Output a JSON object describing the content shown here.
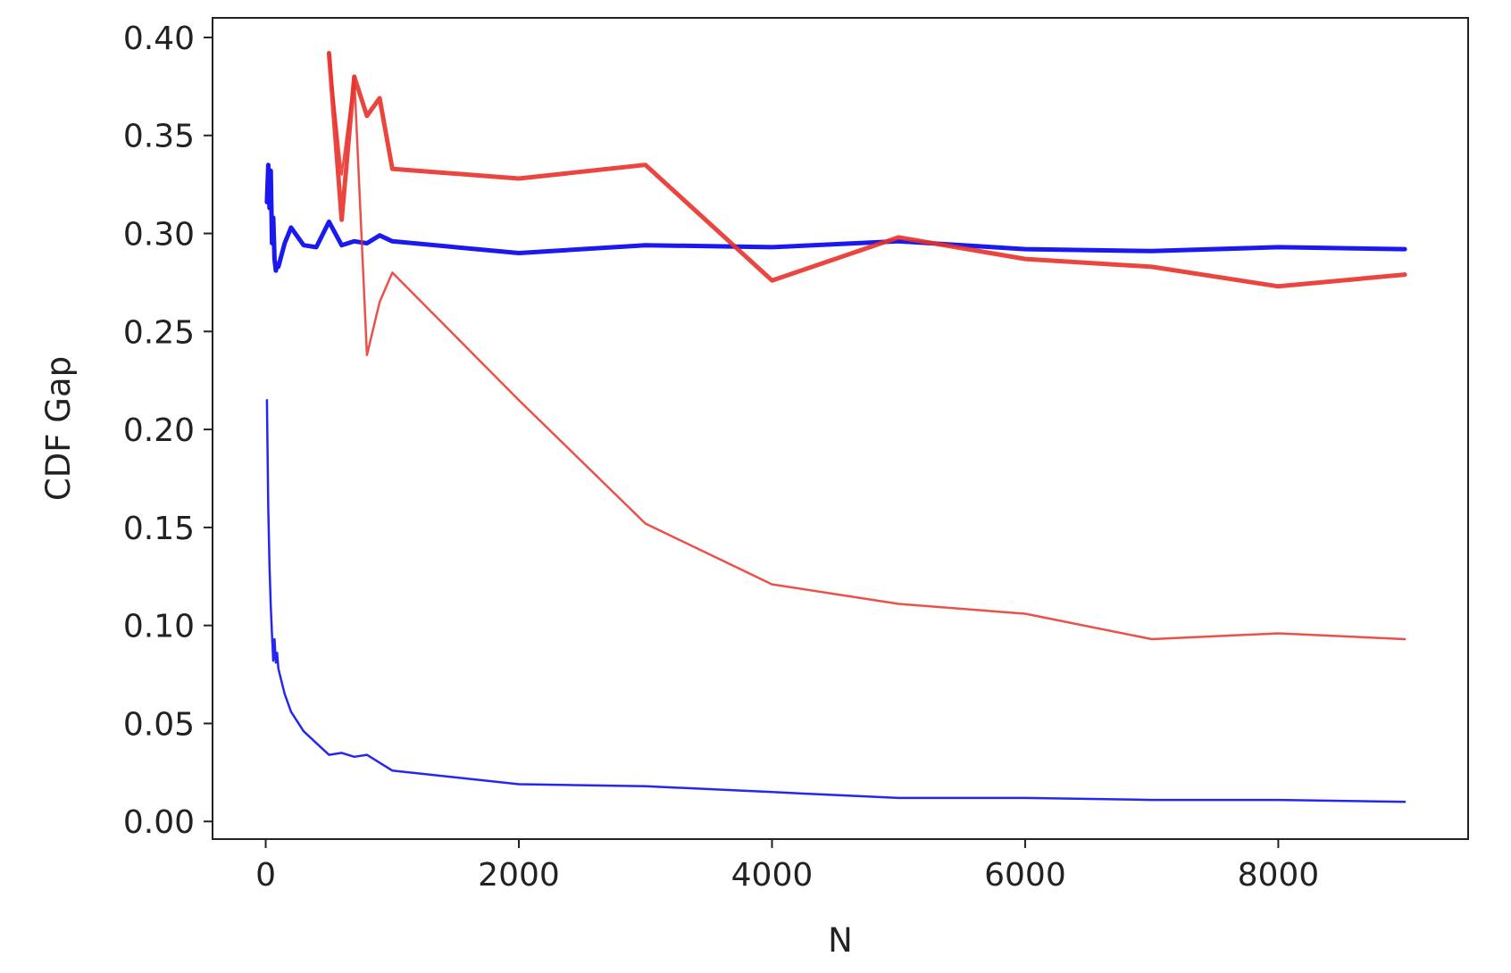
{
  "chart_data": {
    "type": "line",
    "title": "",
    "xlabel": "N",
    "ylabel": "CDF Gap",
    "xlim": [
      -420,
      9500
    ],
    "ylim": [
      -0.009,
      0.41
    ],
    "x_ticks": [
      0,
      2000,
      4000,
      6000,
      8000
    ],
    "x_tick_labels": [
      "0",
      "2000",
      "4000",
      "6000",
      "8000"
    ],
    "y_ticks": [
      0.0,
      0.05,
      0.1,
      0.15,
      0.2,
      0.25,
      0.3,
      0.35,
      0.4
    ],
    "y_tick_labels": [
      "0.00",
      "0.05",
      "0.10",
      "0.15",
      "0.20",
      "0.25",
      "0.30",
      "0.35",
      "0.40"
    ],
    "grid": false,
    "legend": "none",
    "series": [
      {
        "color": "#0000ee",
        "width": "thick",
        "points": [
          [
            10,
            0.316
          ],
          [
            20,
            0.335
          ],
          [
            30,
            0.313
          ],
          [
            40,
            0.332
          ],
          [
            50,
            0.295
          ],
          [
            60,
            0.308
          ],
          [
            70,
            0.287
          ],
          [
            80,
            0.281
          ],
          [
            90,
            0.284
          ],
          [
            100,
            0.283
          ],
          [
            150,
            0.295
          ],
          [
            200,
            0.303
          ],
          [
            300,
            0.294
          ],
          [
            400,
            0.293
          ],
          [
            500,
            0.306
          ],
          [
            600,
            0.294
          ],
          [
            700,
            0.296
          ],
          [
            800,
            0.295
          ],
          [
            900,
            0.299
          ],
          [
            1000,
            0.296
          ],
          [
            2000,
            0.29
          ],
          [
            3000,
            0.294
          ],
          [
            4000,
            0.293
          ],
          [
            5000,
            0.296
          ],
          [
            6000,
            0.292
          ],
          [
            7000,
            0.291
          ],
          [
            8000,
            0.293
          ],
          [
            9000,
            0.292
          ]
        ]
      },
      {
        "color": "#0000ee",
        "width": "thin",
        "points": [
          [
            10,
            0.215
          ],
          [
            20,
            0.16
          ],
          [
            30,
            0.13
          ],
          [
            40,
            0.11
          ],
          [
            50,
            0.095
          ],
          [
            60,
            0.082
          ],
          [
            70,
            0.093
          ],
          [
            80,
            0.081
          ],
          [
            90,
            0.086
          ],
          [
            100,
            0.078
          ],
          [
            150,
            0.065
          ],
          [
            200,
            0.056
          ],
          [
            300,
            0.046
          ],
          [
            400,
            0.04
          ],
          [
            500,
            0.034
          ],
          [
            600,
            0.035
          ],
          [
            700,
            0.033
          ],
          [
            800,
            0.034
          ],
          [
            900,
            0.03
          ],
          [
            1000,
            0.026
          ],
          [
            2000,
            0.019
          ],
          [
            3000,
            0.018
          ],
          [
            4000,
            0.015
          ],
          [
            5000,
            0.012
          ],
          [
            6000,
            0.012
          ],
          [
            7000,
            0.011
          ],
          [
            8000,
            0.011
          ],
          [
            9000,
            0.01
          ]
        ]
      },
      {
        "color": "#e8312a",
        "width": "thick",
        "points": [
          [
            500,
            0.392
          ],
          [
            600,
            0.307
          ],
          [
            700,
            0.38
          ],
          [
            800,
            0.36
          ],
          [
            900,
            0.369
          ],
          [
            1000,
            0.333
          ],
          [
            2000,
            0.328
          ],
          [
            3000,
            0.335
          ],
          [
            4000,
            0.276
          ],
          [
            5000,
            0.298
          ],
          [
            6000,
            0.287
          ],
          [
            7000,
            0.283
          ],
          [
            8000,
            0.273
          ],
          [
            9000,
            0.279
          ]
        ]
      },
      {
        "color": "#e8312a",
        "width": "thin",
        "points": [
          [
            500,
            0.392
          ],
          [
            600,
            0.33
          ],
          [
            700,
            0.38
          ],
          [
            800,
            0.238
          ],
          [
            900,
            0.265
          ],
          [
            1000,
            0.28
          ],
          [
            2000,
            0.215
          ],
          [
            3000,
            0.152
          ],
          [
            4000,
            0.121
          ],
          [
            5000,
            0.111
          ],
          [
            6000,
            0.106
          ],
          [
            7000,
            0.093
          ],
          [
            8000,
            0.096
          ],
          [
            9000,
            0.093
          ]
        ]
      }
    ]
  }
}
